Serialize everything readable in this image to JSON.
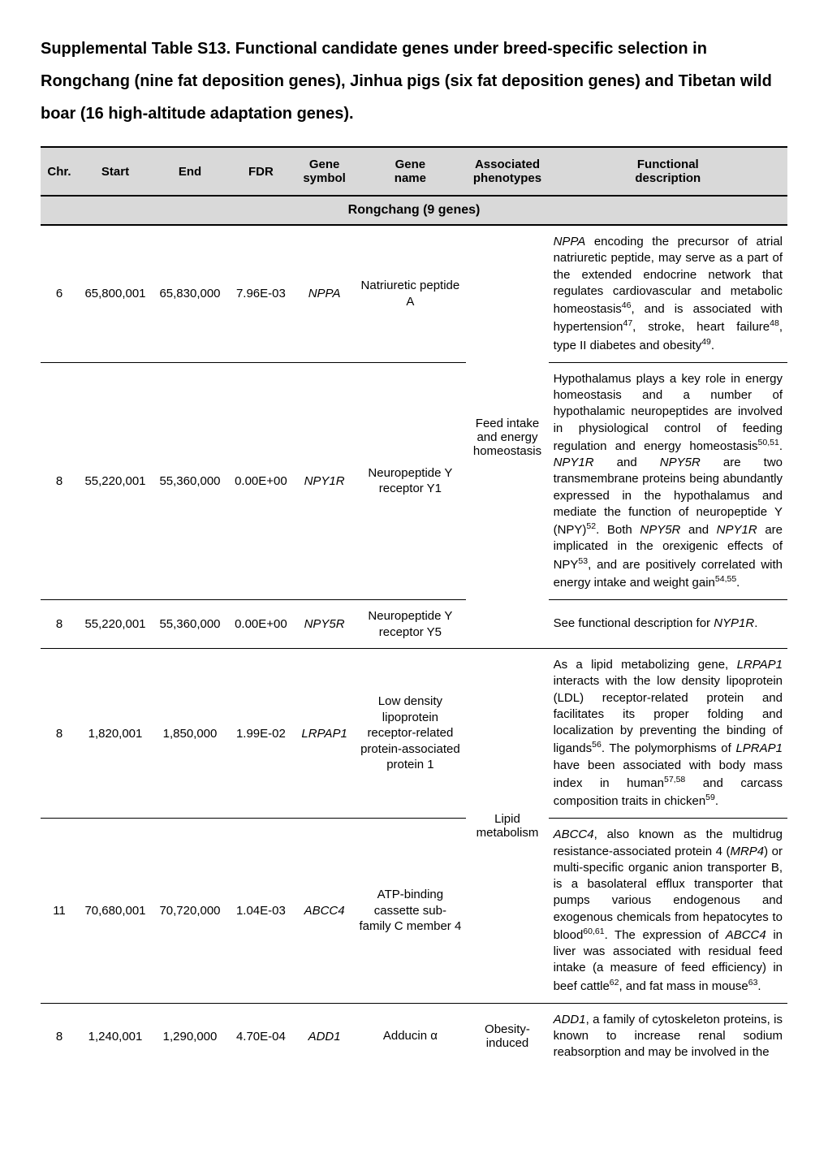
{
  "title": "Supplemental Table S13. Functional candidate genes under breed-specific selection in Rongchang (nine fat deposition genes), Jinhua pigs (six fat deposition genes) and Tibetan wild boar (16 high-altitude adaptation genes).",
  "columns": [
    "Chr.",
    "Start",
    "End",
    "FDR",
    "Gene symbol",
    "Gene name",
    "Associated phenotypes",
    "Functional description"
  ],
  "section": "Rongchang (9 genes)",
  "rows": [
    {
      "chr": "6",
      "start": "65,800,001",
      "end": "65,830,000",
      "fdr": "7.96E-03",
      "symbol": "NPPA",
      "name": "Natriuretic peptide A",
      "assoc": "Feed intake and energy homeostasis",
      "assoc_span": 3,
      "desc": "<span class=\"italic\">NPPA</span> encoding the precursor of atrial natriuretic peptide, may serve as a part of the extended endocrine network that regulates cardiovascular and metabolic homeostasis<sup>46</sup>, and is associated with hypertension<sup>47</sup>, stroke, heart failure<sup>48</sup>, type II diabetes and obesity<sup>49</sup>."
    },
    {
      "chr": "8",
      "start": "55,220,001",
      "end": "55,360,000",
      "fdr": "0.00E+00",
      "symbol": "NPY1R",
      "name": "Neuropeptide Y receptor Y1",
      "desc": "Hypothalamus plays a key role in energy homeostasis and a number of hypothalamic neuropeptides are involved in physiological control of feeding regulation and energy homeostasis<sup>50,51</sup>. <span class=\"italic\">NPY1R</span> and <span class=\"italic\">NPY5R</span> are two transmembrane proteins being abundantly expressed in the hypothalamus and mediate the function of neuropeptide Y (NPY)<sup>52</sup>. Both <span class=\"italic\">NPY5R</span> and <span class=\"italic\">NPY1R</span> are implicated in the orexigenic effects of NPY<sup>53</sup>, and are positively correlated with energy intake and weight gain<sup>54,55</sup>."
    },
    {
      "chr": "8",
      "start": "55,220,001",
      "end": "55,360,000",
      "fdr": "0.00E+00",
      "symbol": "NPY5R",
      "name": "Neuropeptide Y receptor Y5",
      "desc": "See functional description for <span class=\"italic\">NYP1R</span>."
    },
    {
      "chr": "8",
      "start": "1,820,001",
      "end": "1,850,000",
      "fdr": "1.99E-02",
      "symbol": "LRPAP1",
      "name": "Low density lipoprotein receptor-related protein-associated protein 1",
      "assoc": "Lipid metabolism",
      "assoc_span": 2,
      "desc": "As a lipid metabolizing gene, <span class=\"italic\">LRPAP1</span> interacts with the low density lipoprotein (LDL) receptor-related protein and facilitates its proper folding and localization by preventing the binding of ligands<sup>56</sup>. The polymorphisms of <span class=\"italic\">LPRAP1</span> have been associated with body mass index in human<sup>57,58</sup> and carcass composition traits in chicken<sup>59</sup>."
    },
    {
      "chr": "11",
      "start": "70,680,001",
      "end": "70,720,000",
      "fdr": "1.04E-03",
      "symbol": "ABCC4",
      "name": "ATP-binding cassette sub-family C member 4",
      "desc": "<span class=\"italic\">ABCC4</span>, also known as the multidrug resistance-associated protein 4 (<span class=\"italic\">MRP4</span>) or multi-specific organic anion transporter B, is a basolateral efflux transporter that pumps various endogenous and exogenous chemicals from hepatocytes to blood<sup>60,61</sup>. The expression of <span class=\"italic\">ABCC4</span> in liver was associated with residual feed intake (a measure of feed efficiency) in beef cattle<sup>62</sup>, and fat mass in mouse<sup>63</sup>."
    },
    {
      "chr": "8",
      "start": "1,240,001",
      "end": "1,290,000",
      "fdr": "4.70E-04",
      "symbol": "ADD1",
      "name": "Adducin α",
      "assoc": "Obesity-induced",
      "assoc_span": 1,
      "desc": "<span class=\"italic\">ADD1</span>, a family of cytoskeleton proteins, is known to increase renal sodium reabsorption and may be involved in the",
      "last": true
    }
  ],
  "col_widths": [
    "5%",
    "10%",
    "10%",
    "9%",
    "8%",
    "15%",
    "11%",
    "32%"
  ]
}
